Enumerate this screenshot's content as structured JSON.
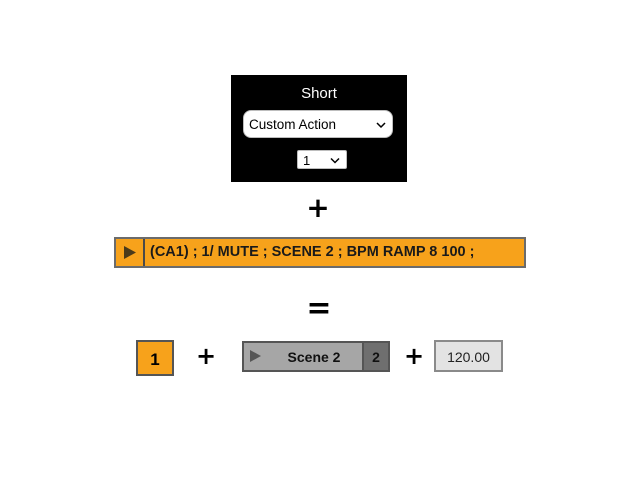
{
  "panel": {
    "title": "Short",
    "action_select": {
      "selected": "Custom Action"
    },
    "number_select": {
      "selected": "1"
    }
  },
  "operators": {
    "plus": "+",
    "equals": "="
  },
  "clip": {
    "text": "(CA1) ; 1/ MUTE ; SCENE 2 ; BPM RAMP 8 100 ;",
    "color": "#f7a21b"
  },
  "result": {
    "track_number": "1",
    "scene_name": "Scene 2",
    "scene_number": "2",
    "bpm": "120.00"
  }
}
